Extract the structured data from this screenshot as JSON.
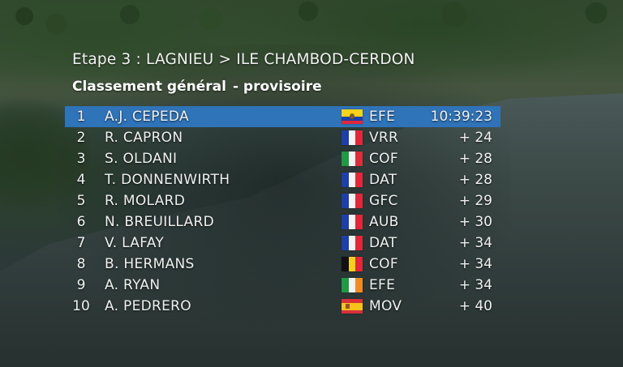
{
  "stage": {
    "title": "Etape 3 : LAGNIEU > ILE CHAMBOD-CERDON"
  },
  "classification": {
    "label": "Classement général",
    "status": "- provisoire"
  },
  "rows": [
    {
      "rank": "1",
      "name": "A.J. CEPEDA",
      "country": "ecuador-flag-icon",
      "team": "EFE",
      "time": "10:39:23"
    },
    {
      "rank": "2",
      "name": "R. CAPRON",
      "country": "france-flag-icon",
      "team": "VRR",
      "time": "+ 24"
    },
    {
      "rank": "3",
      "name": "S. OLDANI",
      "country": "italy-flag-icon",
      "team": "COF",
      "time": "+ 28"
    },
    {
      "rank": "4",
      "name": "T. DONNENWIRTH",
      "country": "france-flag-icon",
      "team": "DAT",
      "time": "+ 28"
    },
    {
      "rank": "5",
      "name": "R. MOLARD",
      "country": "france-flag-icon",
      "team": "GFC",
      "time": "+ 29"
    },
    {
      "rank": "6",
      "name": "N. BREUILLARD",
      "country": "france-flag-icon",
      "team": "AUB",
      "time": "+ 30"
    },
    {
      "rank": "7",
      "name": "V. LAFAY",
      "country": "france-flag-icon",
      "team": "DAT",
      "time": "+ 34"
    },
    {
      "rank": "8",
      "name": "B. HERMANS",
      "country": "belgium-flag-icon",
      "team": "COF",
      "time": "+ 34"
    },
    {
      "rank": "9",
      "name": "A. RYAN",
      "country": "ireland-flag-icon",
      "team": "EFE",
      "time": "+ 34"
    },
    {
      "rank": "10",
      "name": "A. PEDRERO",
      "country": "spain-flag-icon",
      "team": "MOV",
      "time": "+ 40"
    }
  ],
  "colors": {
    "leader_highlight": "#2f73b8",
    "text": "#f0f0f0"
  }
}
